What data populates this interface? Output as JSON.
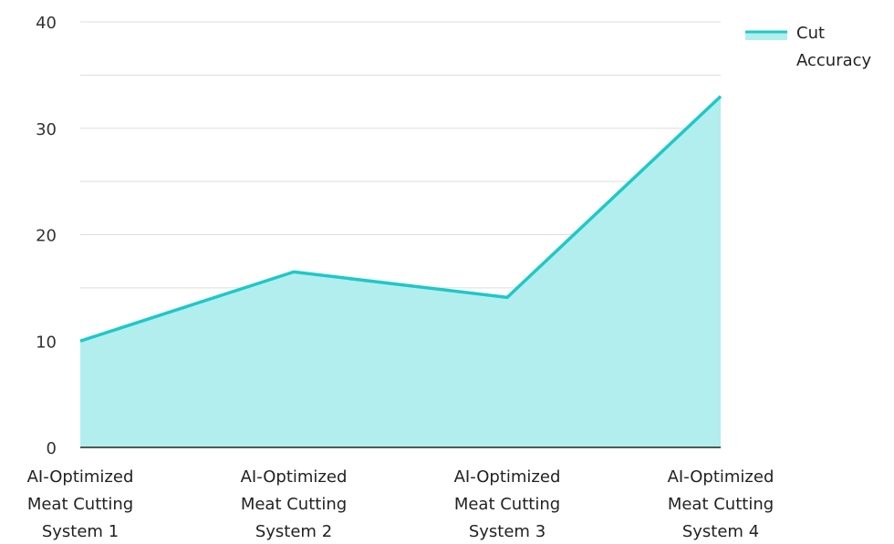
{
  "chart_data": {
    "type": "area",
    "categories": [
      [
        "AI-Optimized",
        "Meat Cutting",
        "System 1"
      ],
      [
        "AI-Optimized",
        "Meat Cutting",
        "System 2"
      ],
      [
        "AI-Optimized",
        "Meat Cutting",
        "System 3"
      ],
      [
        "AI-Optimized",
        "Meat Cutting",
        "System 4"
      ]
    ],
    "series": [
      {
        "name": "Cut Accuracy",
        "values": [
          10,
          16.5,
          14.1,
          33
        ]
      }
    ],
    "legend_label_lines": [
      "Cut",
      "Accuracy"
    ],
    "ylim": [
      0,
      40
    ],
    "yticks": [
      0,
      10,
      20,
      30,
      40
    ],
    "grid": true,
    "legend_position": "top-right",
    "colors": {
      "line": "#1ec8c8",
      "fill": "#b2eeee",
      "grid": "#dddddd",
      "axis": "#222222"
    }
  }
}
